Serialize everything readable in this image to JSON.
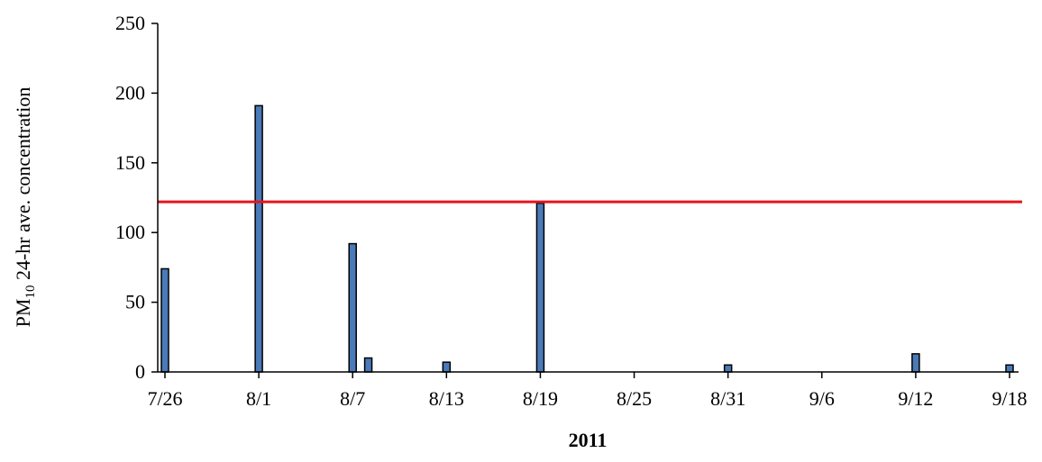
{
  "chart_data": {
    "type": "bar",
    "title": "",
    "xlabel": "2011",
    "ylabel_main": "PM",
    "ylabel_sub": "10",
    "ylabel_rest": " 24-hr ave. concentration",
    "ylim": [
      0,
      250
    ],
    "yticks": [
      "0",
      "50",
      "100",
      "150",
      "200",
      "250"
    ],
    "xticks": [
      "7/26",
      "8/1",
      "8/7",
      "8/13",
      "8/19",
      "8/25",
      "8/31",
      "9/6",
      "9/12",
      "9/18"
    ],
    "x_start": "2011-07-26",
    "x_end": "2011-09-18",
    "bars": [
      {
        "date": "2011-07-26",
        "value": 74
      },
      {
        "date": "2011-08-01",
        "value": 191
      },
      {
        "date": "2011-08-07",
        "value": 92
      },
      {
        "date": "2011-08-08",
        "value": 10
      },
      {
        "date": "2011-08-13",
        "value": 7
      },
      {
        "date": "2011-08-19",
        "value": 121
      },
      {
        "date": "2011-08-31",
        "value": 5
      },
      {
        "date": "2011-09-12",
        "value": 13
      },
      {
        "date": "2011-09-18",
        "value": 5
      }
    ],
    "reference_line": {
      "value": 122,
      "color": "#e8141c"
    },
    "bar_color": "#4a7ab8",
    "grid": false,
    "legend": "none"
  }
}
